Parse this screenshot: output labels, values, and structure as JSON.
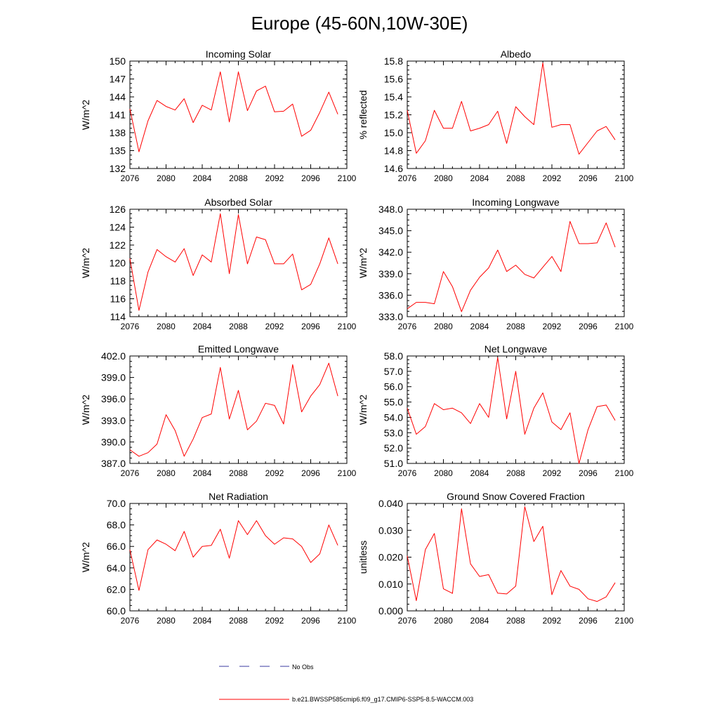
{
  "page_title": "Europe (45-60N,10W-30E)",
  "legend": {
    "obs_label": "No Obs",
    "model_label": "b.e21.BWSSP585cmip6.f09_g17.CMIP6-SSP5-8.5-WACCM.003",
    "obs_color": "#3a3aa0",
    "model_color": "#ff0000"
  },
  "chart_data": [
    {
      "type": "line",
      "title": "Incoming Solar",
      "xlabel": "",
      "ylabel": "W/m^2",
      "xlim": [
        2076,
        2100
      ],
      "ylim": [
        132,
        150
      ],
      "x_ticks": [
        2076,
        2080,
        2084,
        2088,
        2092,
        2096,
        2100
      ],
      "y_ticks": [
        132,
        135,
        138,
        141,
        144,
        147,
        150
      ],
      "y_tick_labels": [
        "132",
        "135",
        "138",
        "141",
        "144",
        "147",
        "150"
      ],
      "series": [
        {
          "name": "b.e21.BWSSP585cmip6.f09_g17.CMIP6-SSP5-8.5-WACCM.003",
          "x": [
            2076,
            2077,
            2078,
            2079,
            2080,
            2081,
            2082,
            2083,
            2084,
            2085,
            2086,
            2087,
            2088,
            2089,
            2090,
            2091,
            2092,
            2093,
            2094,
            2095,
            2096,
            2097,
            2098,
            2099
          ],
          "values": [
            142.0,
            134.8,
            140.0,
            143.4,
            142.4,
            141.8,
            143.7,
            139.7,
            142.6,
            141.8,
            148.2,
            139.8,
            148.2,
            141.7,
            145.0,
            145.8,
            141.5,
            141.6,
            142.8,
            137.4,
            138.4,
            141.4,
            144.8,
            141.1
          ]
        }
      ]
    },
    {
      "type": "line",
      "title": "Albedo",
      "xlabel": "",
      "ylabel": "% reflected",
      "xlim": [
        2076,
        2100
      ],
      "ylim": [
        14.6,
        15.8
      ],
      "x_ticks": [
        2076,
        2080,
        2084,
        2088,
        2092,
        2096,
        2100
      ],
      "y_ticks": [
        14.6,
        14.8,
        15.0,
        15.2,
        15.4,
        15.6,
        15.8
      ],
      "y_tick_labels": [
        "14.6",
        "14.8",
        "15.0",
        "15.2",
        "15.4",
        "15.6",
        "15.8"
      ],
      "series": [
        {
          "name": "b.e21.BWSSP585cmip6.f09_g17.CMIP6-SSP5-8.5-WACCM.003",
          "x": [
            2076,
            2077,
            2078,
            2079,
            2080,
            2081,
            2082,
            2083,
            2084,
            2085,
            2086,
            2087,
            2088,
            2089,
            2090,
            2091,
            2092,
            2093,
            2094,
            2095,
            2096,
            2097,
            2098,
            2099
          ],
          "values": [
            15.25,
            14.77,
            14.91,
            15.25,
            15.05,
            15.05,
            15.35,
            15.02,
            15.05,
            15.09,
            15.24,
            14.88,
            15.29,
            15.18,
            15.09,
            15.78,
            15.06,
            15.09,
            15.09,
            14.76,
            14.89,
            15.02,
            15.07,
            14.92
          ]
        }
      ]
    },
    {
      "type": "line",
      "title": "Absorbed Solar",
      "xlabel": "",
      "ylabel": "W/m^2",
      "xlim": [
        2076,
        2100
      ],
      "ylim": [
        114,
        126
      ],
      "x_ticks": [
        2076,
        2080,
        2084,
        2088,
        2092,
        2096,
        2100
      ],
      "y_ticks": [
        114,
        116,
        118,
        120,
        122,
        124,
        126
      ],
      "y_tick_labels": [
        "114",
        "116",
        "118",
        "120",
        "122",
        "124",
        "126"
      ],
      "series": [
        {
          "name": "b.e21.BWSSP585cmip6.f09_g17.CMIP6-SSP5-8.5-WACCM.003",
          "x": [
            2076,
            2077,
            2078,
            2079,
            2080,
            2081,
            2082,
            2083,
            2084,
            2085,
            2086,
            2087,
            2088,
            2089,
            2090,
            2091,
            2092,
            2093,
            2094,
            2095,
            2096,
            2097,
            2098,
            2099
          ],
          "values": [
            120.5,
            114.7,
            119.0,
            121.5,
            120.7,
            120.1,
            121.6,
            118.6,
            120.9,
            120.1,
            125.5,
            118.8,
            125.4,
            119.9,
            122.9,
            122.6,
            119.9,
            119.9,
            121.0,
            117.0,
            117.6,
            119.9,
            122.8,
            119.9
          ]
        }
      ]
    },
    {
      "type": "line",
      "title": "Incoming Longwave",
      "xlabel": "",
      "ylabel": "W/m^2",
      "xlim": [
        2076,
        2100
      ],
      "ylim": [
        333.0,
        348.0
      ],
      "x_ticks": [
        2076,
        2080,
        2084,
        2088,
        2092,
        2096,
        2100
      ],
      "y_ticks": [
        333.0,
        336.0,
        339.0,
        342.0,
        345.0,
        348.0
      ],
      "y_tick_labels": [
        "333.0",
        "336.0",
        "339.0",
        "342.0",
        "345.0",
        "348.0"
      ],
      "series": [
        {
          "name": "b.e21.BWSSP585cmip6.f09_g17.CMIP6-SSP5-8.5-WACCM.003",
          "x": [
            2076,
            2077,
            2078,
            2079,
            2080,
            2081,
            2082,
            2083,
            2084,
            2085,
            2086,
            2087,
            2088,
            2089,
            2090,
            2091,
            2092,
            2093,
            2094,
            2095,
            2096,
            2097,
            2098,
            2099
          ],
          "values": [
            334.1,
            335.0,
            335.0,
            334.8,
            339.3,
            337.2,
            333.7,
            336.7,
            338.5,
            339.8,
            342.3,
            339.3,
            340.2,
            338.9,
            338.4,
            339.9,
            341.4,
            339.3,
            346.3,
            343.2,
            343.2,
            343.3,
            346.1,
            342.7
          ]
        }
      ]
    },
    {
      "type": "line",
      "title": "Emitted Longwave",
      "xlabel": "",
      "ylabel": "W/m^2",
      "xlim": [
        2076,
        2100
      ],
      "ylim": [
        387.0,
        402.0
      ],
      "x_ticks": [
        2076,
        2080,
        2084,
        2088,
        2092,
        2096,
        2100
      ],
      "y_ticks": [
        387.0,
        390.0,
        393.0,
        396.0,
        399.0,
        402.0
      ],
      "y_tick_labels": [
        "387.0",
        "390.0",
        "393.0",
        "396.0",
        "399.0",
        "402.0"
      ],
      "series": [
        {
          "name": "b.e21.BWSSP585cmip6.f09_g17.CMIP6-SSP5-8.5-WACCM.003",
          "x": [
            2076,
            2077,
            2078,
            2079,
            2080,
            2081,
            2082,
            2083,
            2084,
            2085,
            2086,
            2087,
            2088,
            2089,
            2090,
            2091,
            2092,
            2093,
            2094,
            2095,
            2096,
            2097,
            2098,
            2099
          ],
          "values": [
            388.9,
            388.0,
            388.5,
            389.7,
            393.8,
            391.6,
            388.0,
            390.4,
            393.4,
            393.9,
            400.4,
            393.2,
            397.2,
            391.7,
            392.9,
            395.4,
            395.1,
            392.5,
            400.8,
            394.2,
            396.4,
            398.0,
            401.0,
            396.4
          ]
        }
      ]
    },
    {
      "type": "line",
      "title": "Net Longwave",
      "xlabel": "",
      "ylabel": "W/m^2",
      "xlim": [
        2076,
        2100
      ],
      "ylim": [
        51.0,
        58.0
      ],
      "x_ticks": [
        2076,
        2080,
        2084,
        2088,
        2092,
        2096,
        2100
      ],
      "y_ticks": [
        51.0,
        52.0,
        53.0,
        54.0,
        55.0,
        56.0,
        57.0,
        58.0
      ],
      "y_tick_labels": [
        "51.0",
        "52.0",
        "53.0",
        "54.0",
        "55.0",
        "56.0",
        "57.0",
        "58.0"
      ],
      "series": [
        {
          "name": "b.e21.BWSSP585cmip6.f09_g17.CMIP6-SSP5-8.5-WACCM.003",
          "x": [
            2076,
            2077,
            2078,
            2079,
            2080,
            2081,
            2082,
            2083,
            2084,
            2085,
            2086,
            2087,
            2088,
            2089,
            2090,
            2091,
            2092,
            2093,
            2094,
            2095,
            2096,
            2097,
            2098,
            2099
          ],
          "values": [
            54.6,
            52.9,
            53.4,
            54.9,
            54.5,
            54.6,
            54.3,
            53.6,
            54.9,
            54.0,
            57.9,
            53.9,
            57.0,
            52.9,
            54.6,
            55.6,
            53.7,
            53.2,
            54.3,
            51.0,
            53.2,
            54.7,
            54.8,
            53.8
          ]
        }
      ]
    },
    {
      "type": "line",
      "title": "Net Radiation",
      "xlabel": "",
      "ylabel": "W/m^2",
      "xlim": [
        2076,
        2100
      ],
      "ylim": [
        60.0,
        70.0
      ],
      "x_ticks": [
        2076,
        2080,
        2084,
        2088,
        2092,
        2096,
        2100
      ],
      "y_ticks": [
        60.0,
        62.0,
        64.0,
        66.0,
        68.0,
        70.0
      ],
      "y_tick_labels": [
        "60.0",
        "62.0",
        "64.0",
        "66.0",
        "68.0",
        "70.0"
      ],
      "series": [
        {
          "name": "b.e21.BWSSP585cmip6.f09_g17.CMIP6-SSP5-8.5-WACCM.003",
          "x": [
            2076,
            2077,
            2078,
            2079,
            2080,
            2081,
            2082,
            2083,
            2084,
            2085,
            2086,
            2087,
            2088,
            2089,
            2090,
            2091,
            2092,
            2093,
            2094,
            2095,
            2096,
            2097,
            2098,
            2099
          ],
          "values": [
            65.7,
            61.9,
            65.7,
            66.6,
            66.2,
            65.6,
            67.4,
            65.0,
            66.0,
            66.1,
            67.6,
            64.9,
            68.4,
            67.1,
            68.4,
            67.0,
            66.2,
            66.8,
            66.7,
            66.0,
            64.5,
            65.3,
            68.0,
            66.1
          ]
        }
      ]
    },
    {
      "type": "line",
      "title": "Ground Snow Covered Fraction",
      "xlabel": "",
      "ylabel": "unitless",
      "xlim": [
        2076,
        2100
      ],
      "ylim": [
        0.0,
        0.04
      ],
      "x_ticks": [
        2076,
        2080,
        2084,
        2088,
        2092,
        2096,
        2100
      ],
      "y_ticks": [
        0.0,
        0.01,
        0.02,
        0.03,
        0.04
      ],
      "y_tick_labels": [
        "0.000",
        "0.010",
        "0.020",
        "0.030",
        "0.040"
      ],
      "series": [
        {
          "name": "b.e21.BWSSP585cmip6.f09_g17.CMIP6-SSP5-8.5-WACCM.003",
          "x": [
            2076,
            2077,
            2078,
            2079,
            2080,
            2081,
            2082,
            2083,
            2084,
            2085,
            2086,
            2087,
            2088,
            2089,
            2090,
            2091,
            2092,
            2093,
            2094,
            2095,
            2096,
            2097,
            2098,
            2099
          ],
          "values": [
            0.0205,
            0.0038,
            0.0228,
            0.0288,
            0.0082,
            0.0065,
            0.038,
            0.0175,
            0.0128,
            0.0135,
            0.0066,
            0.0063,
            0.0092,
            0.0388,
            0.0258,
            0.0315,
            0.006,
            0.015,
            0.0092,
            0.008,
            0.0045,
            0.0035,
            0.0052,
            0.0105
          ]
        }
      ]
    }
  ]
}
